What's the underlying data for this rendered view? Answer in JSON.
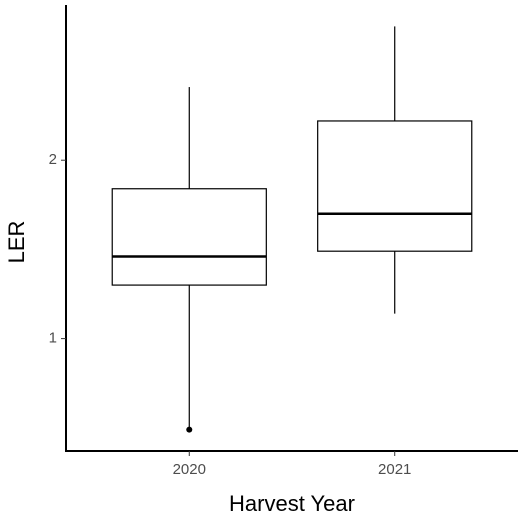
{
  "chart_data": {
    "type": "box",
    "x_label": "Harvest Year",
    "y_label": "LER",
    "categories": [
      "2020",
      "2021"
    ],
    "boxes": [
      {
        "min": 0.5,
        "q1": 1.3,
        "median": 1.46,
        "q3": 1.84,
        "max": 2.41,
        "outliers": [
          0.49
        ]
      },
      {
        "min": 1.14,
        "q1": 1.49,
        "median": 1.7,
        "q3": 2.22,
        "max": 2.75,
        "outliers": []
      }
    ],
    "ylim": [
      0.37,
      2.87
    ],
    "yticks": [
      1,
      2
    ],
    "grid": false,
    "color": "#000000"
  }
}
